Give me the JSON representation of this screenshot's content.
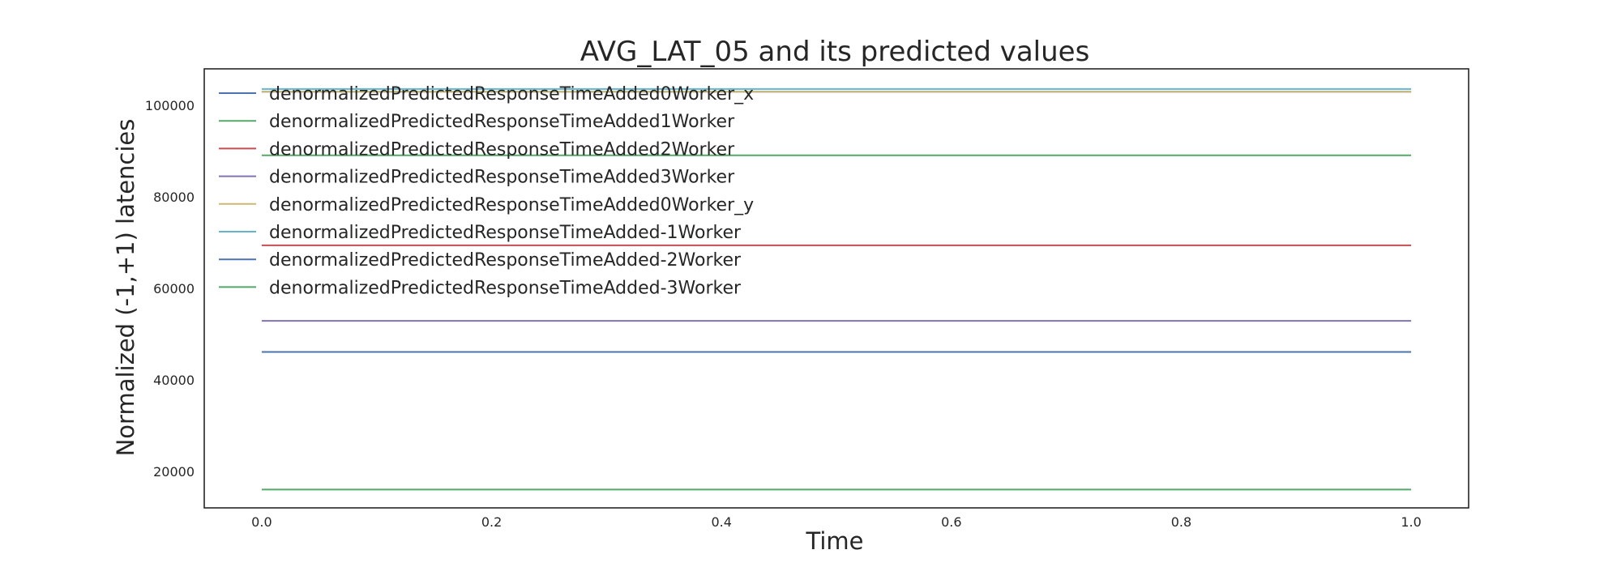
{
  "chart_data": {
    "type": "line",
    "title": "AVG_LAT_05 and its predicted values",
    "xlabel": "Time",
    "ylabel": "Normalized (-1,+1) latencies",
    "xlim": [
      -0.05,
      1.05
    ],
    "ylim": [
      12000,
      108000
    ],
    "x_ticks": [
      "0.0",
      "0.2",
      "0.4",
      "0.6",
      "0.8",
      "1.0"
    ],
    "x_tick_values": [
      0.0,
      0.2,
      0.4,
      0.6,
      0.8,
      1.0
    ],
    "y_ticks": [
      "20000",
      "40000",
      "60000",
      "80000",
      "100000"
    ],
    "y_tick_values": [
      20000,
      40000,
      60000,
      80000,
      100000
    ],
    "grid": false,
    "legend_position": "upper left",
    "x": [
      0.0,
      1.0
    ],
    "series": [
      {
        "name": "denormalizedPredictedResponseTimeAdded0Worker_x",
        "color": "#4C72B0",
        "values": [
          103000,
          103000
        ]
      },
      {
        "name": "denormalizedPredictedResponseTimeAdded1Worker",
        "color": "#55A868",
        "values": [
          89100,
          89100
        ]
      },
      {
        "name": "denormalizedPredictedResponseTimeAdded2Worker",
        "color": "#C44E52",
        "values": [
          69400,
          69400
        ]
      },
      {
        "name": "denormalizedPredictedResponseTimeAdded3Worker",
        "color": "#8172B2",
        "values": [
          52900,
          52900
        ]
      },
      {
        "name": "denormalizedPredictedResponseTimeAdded0Worker_y",
        "color": "#CCB974",
        "values": [
          103000,
          103000
        ]
      },
      {
        "name": "denormalizedPredictedResponseTimeAdded-1Worker",
        "color": "#64B5CD",
        "values": [
          103600,
          103600
        ]
      },
      {
        "name": "denormalizedPredictedResponseTimeAdded-2Worker",
        "color": "#4C72B0",
        "values": [
          46100,
          46100
        ]
      },
      {
        "name": "denormalizedPredictedResponseTimeAdded-3Worker",
        "color": "#55A868",
        "values": [
          16000,
          16000
        ]
      }
    ]
  }
}
